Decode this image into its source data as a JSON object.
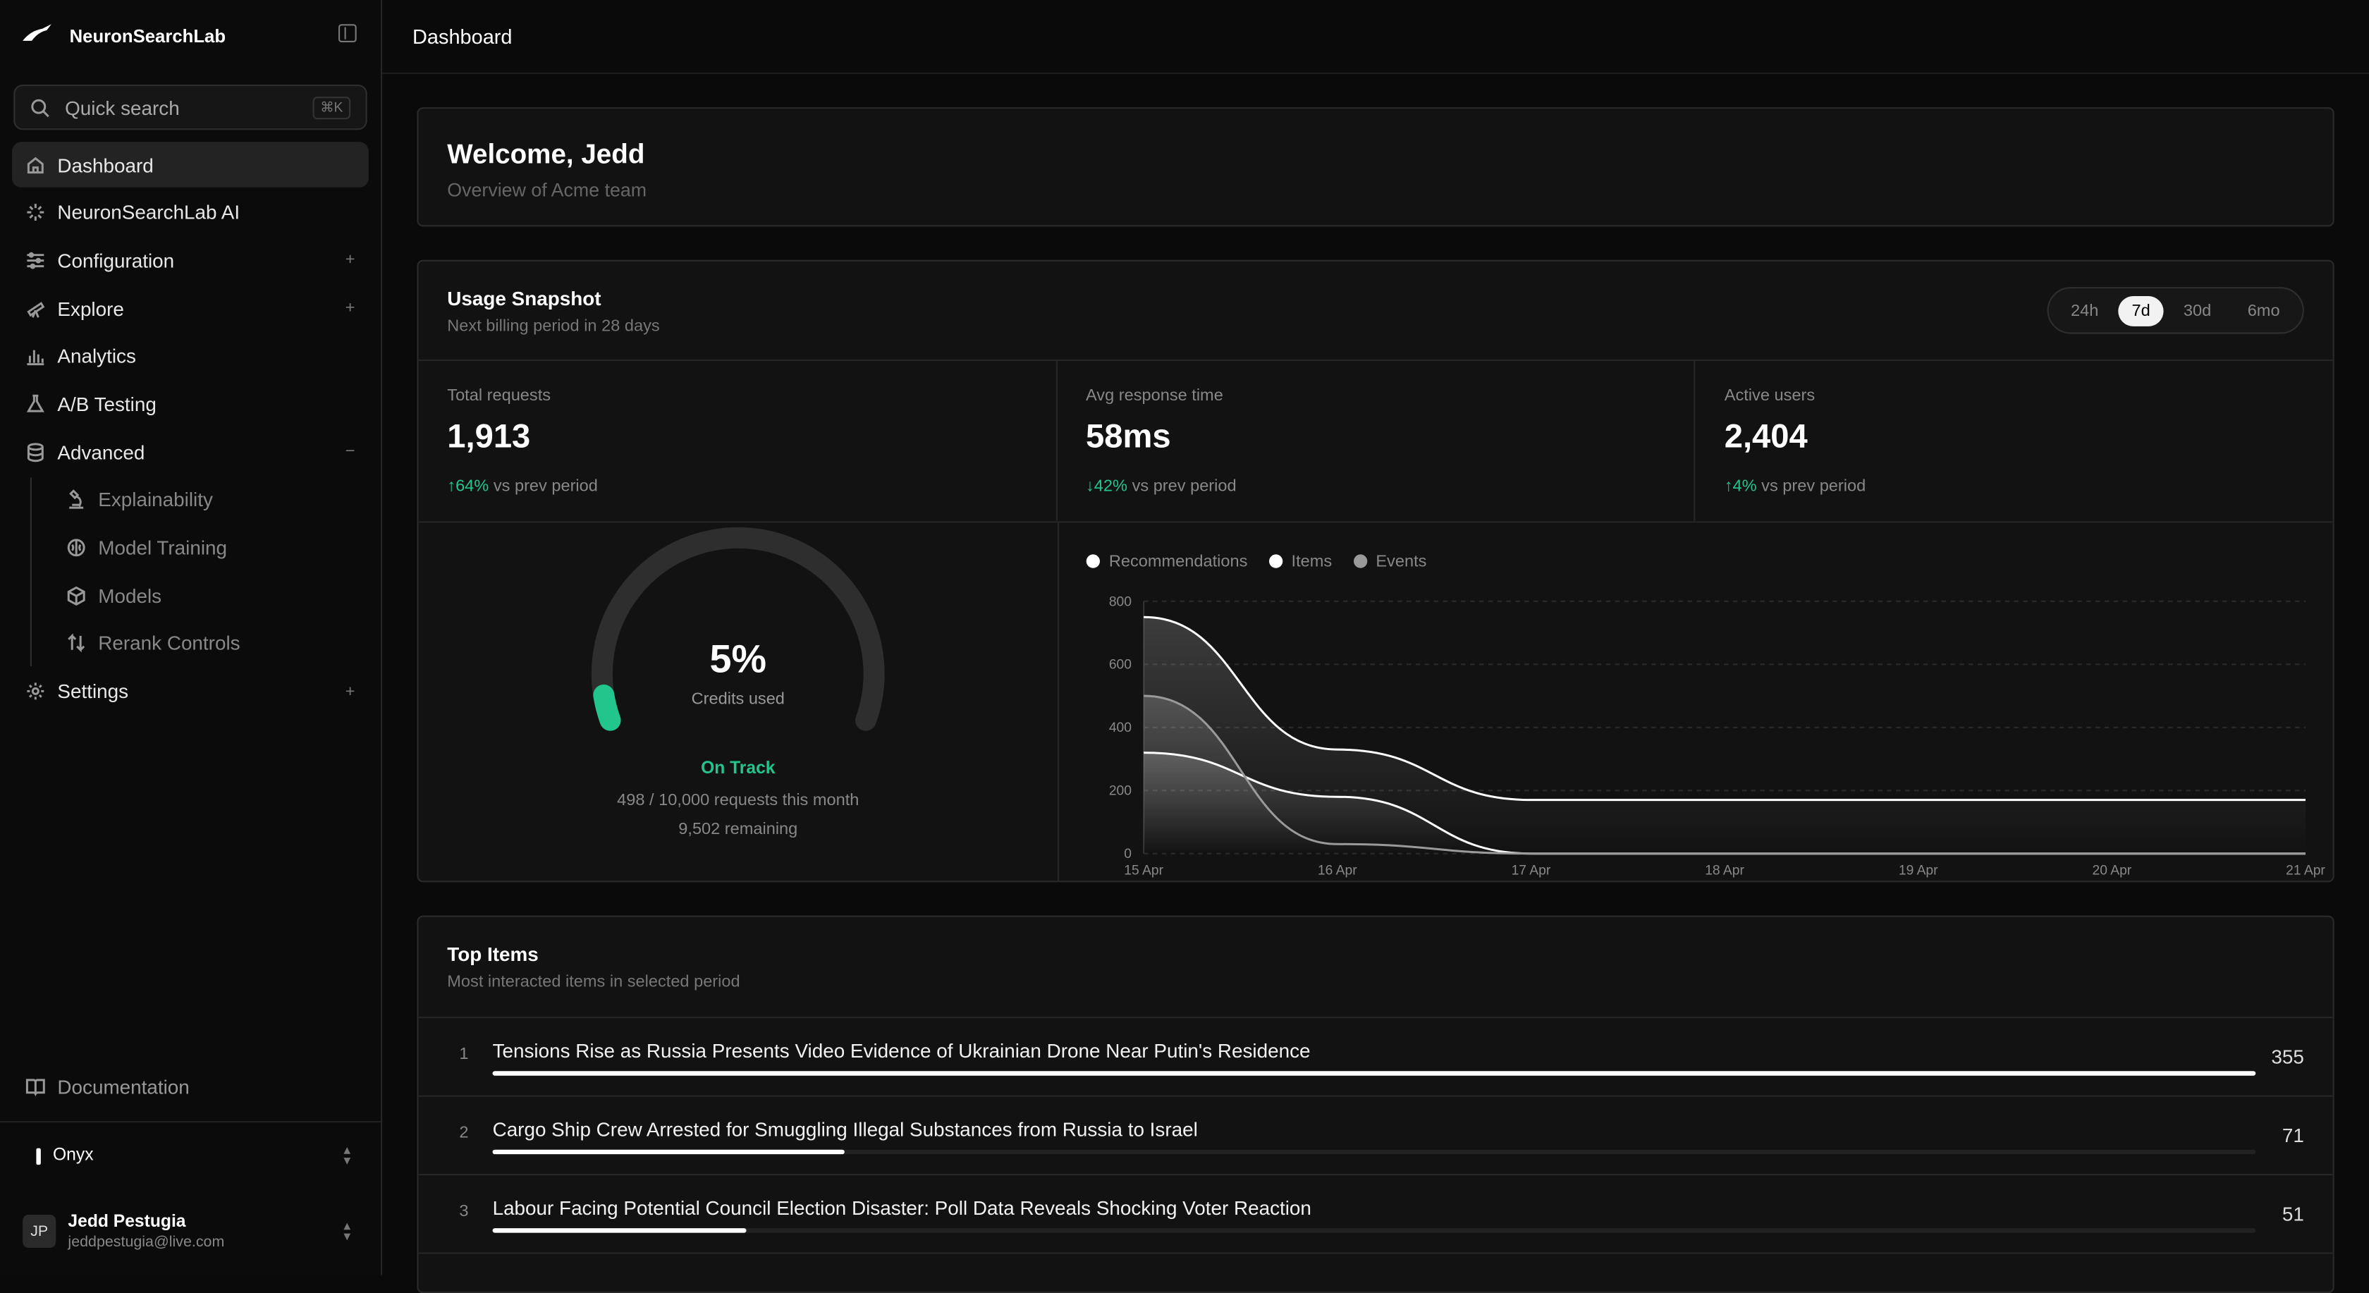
{
  "app": {
    "name": "NeuronSearchLab"
  },
  "search": {
    "placeholder": "Quick search",
    "shortcut": "⌘K"
  },
  "sidebar": {
    "items": [
      {
        "label": "Dashboard",
        "icon": "home-icon",
        "active": true
      },
      {
        "label": "NeuronSearchLab AI",
        "icon": "sparkle-icon"
      },
      {
        "label": "Configuration",
        "icon": "sliders-icon",
        "expand": "+"
      },
      {
        "label": "Explore",
        "icon": "telescope-icon",
        "expand": "+"
      },
      {
        "label": "Analytics",
        "icon": "bar-chart-icon"
      },
      {
        "label": "A/B Testing",
        "icon": "flask-icon"
      },
      {
        "label": "Advanced",
        "icon": "database-icon",
        "expand": "−"
      }
    ],
    "sub_items": [
      {
        "label": "Explainability",
        "icon": "microscope-icon"
      },
      {
        "label": "Model Training",
        "icon": "brain-icon"
      },
      {
        "label": "Models",
        "icon": "cube-icon"
      },
      {
        "label": "Rerank Controls",
        "icon": "arrows-updown-icon"
      }
    ],
    "settings": {
      "label": "Settings",
      "icon": "gear-icon",
      "expand": "+"
    },
    "documentation": {
      "label": "Documentation",
      "icon": "book-icon"
    },
    "org": {
      "name": "Onyx"
    },
    "user": {
      "initials": "JP",
      "name": "Jedd Pestugia",
      "email": "jeddpestugia@live.com"
    }
  },
  "header": {
    "title": "Dashboard"
  },
  "welcome": {
    "title": "Welcome, Jedd",
    "subtitle": "Overview of Acme team"
  },
  "usage": {
    "title": "Usage Snapshot",
    "subtitle": "Next billing period in 28 days",
    "ranges": [
      "24h",
      "7d",
      "30d",
      "6mo"
    ],
    "selected_range": "7d",
    "stats": [
      {
        "label": "Total requests",
        "value": "1,913",
        "delta": "↑64%",
        "delta_suffix": "vs prev period"
      },
      {
        "label": "Avg response time",
        "value": "58ms",
        "delta": "↓42%",
        "delta_suffix": "vs prev period"
      },
      {
        "label": "Active users",
        "value": "2,404",
        "delta": "↑4%",
        "delta_suffix": "vs prev period"
      }
    ],
    "gauge": {
      "percent": 5,
      "percent_label": "5%",
      "caption": "Credits used",
      "status": "On Track",
      "detail": "498 / 10,000 requests this month",
      "remaining": "9,502 remaining"
    }
  },
  "colors": {
    "accent_green": "#22c58b"
  },
  "chart_data": {
    "type": "area",
    "categories": [
      "15 Apr",
      "16 Apr",
      "17 Apr",
      "18 Apr",
      "19 Apr",
      "20 Apr",
      "21 Apr"
    ],
    "yticks": [
      "800",
      "600",
      "400",
      "200",
      "0"
    ],
    "ylim": [
      0,
      800
    ],
    "grid": true,
    "legend_position": "top-left",
    "series": [
      {
        "name": "Recommendations",
        "values": [
          750,
          330,
          170,
          170,
          170,
          170,
          170
        ],
        "color": "#ffffff"
      },
      {
        "name": "Items",
        "values": [
          320,
          180,
          0,
          0,
          0,
          0,
          0
        ],
        "color": "#ffffff"
      },
      {
        "name": "Events",
        "values": [
          500,
          30,
          0,
          0,
          0,
          0,
          0
        ],
        "color": "#9a9a9a"
      }
    ]
  },
  "top_items": {
    "title": "Top Items",
    "subtitle": "Most interacted items in selected period",
    "items": [
      {
        "rank": "1",
        "title": "Tensions Rise as Russia Presents Video Evidence of Ukrainian Drone Near Putin's Residence",
        "count": "355",
        "fraction": 1.0
      },
      {
        "rank": "2",
        "title": "Cargo Ship Crew Arrested for Smuggling Illegal Substances from Russia to Israel",
        "count": "71",
        "fraction": 0.2
      },
      {
        "rank": "3",
        "title": "Labour Facing Potential Council Election Disaster: Poll Data Reveals Shocking Voter Reaction",
        "count": "51",
        "fraction": 0.144
      }
    ]
  }
}
